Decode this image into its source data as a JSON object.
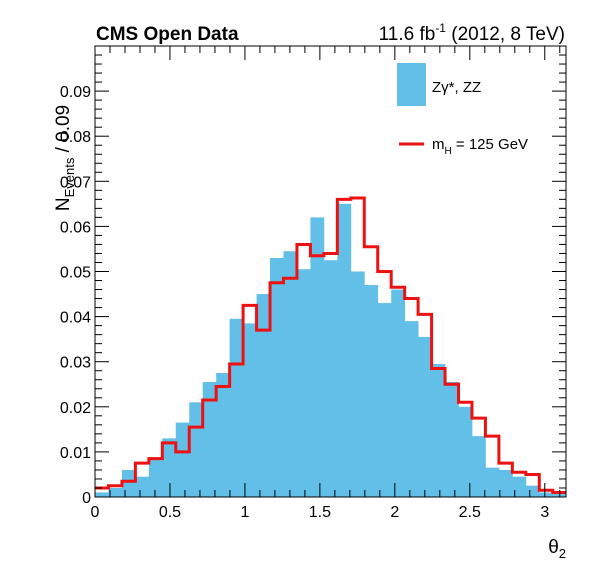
{
  "chart_data": {
    "type": "bar",
    "title": "CMS Open Data",
    "lumi": {
      "base": "11.6 fb",
      "sup": "-1",
      "rest": " (2012, 8 TeV)"
    },
    "xlabel": {
      "base": "θ",
      "sub": "2"
    },
    "ylabel": {
      "base": "N",
      "sub": "Events",
      "rest": " / 0.09"
    },
    "xlim": [
      0,
      3.14159
    ],
    "ylim": [
      0,
      0.1
    ],
    "bin_width": 0.0898,
    "x_ticks": [
      0,
      0.5,
      1,
      1.5,
      2,
      2.5,
      3
    ],
    "x_tick_labels": [
      "0",
      "0.5",
      "1",
      "1.5",
      "2",
      "2.5",
      "3"
    ],
    "y_ticks": [
      0,
      0.01,
      0.02,
      0.03,
      0.04,
      0.05,
      0.06,
      0.07,
      0.08,
      0.09
    ],
    "y_tick_labels": [
      "0",
      "0.01",
      "0.02",
      "0.03",
      "0.04",
      "0.05",
      "0.06",
      "0.07",
      "0.08",
      "0.09"
    ],
    "grid": false,
    "legend_position": "top-right",
    "series": [
      {
        "name": "Zγ*, ZZ",
        "style": "filled-bars",
        "color": "#62bfe8",
        "values": [
          0.001,
          0.002,
          0.006,
          0.0045,
          0.0085,
          0.013,
          0.0165,
          0.021,
          0.0255,
          0.0275,
          0.0395,
          0.0385,
          0.045,
          0.053,
          0.0545,
          0.0505,
          0.062,
          0.0525,
          0.065,
          0.05,
          0.047,
          0.043,
          0.046,
          0.039,
          0.0355,
          0.0295,
          0.0255,
          0.02,
          0.0135,
          0.0065,
          0.006,
          0.0045,
          0.0025,
          0.001,
          0.001
        ]
      },
      {
        "name": "m_H = 125 GeV",
        "legend_label": {
          "base": "m",
          "sub": "H",
          "rest": " = 125 GeV"
        },
        "style": "step-line",
        "color": "#ee1111",
        "values": [
          0.002,
          0.0025,
          0.0035,
          0.0075,
          0.0085,
          0.012,
          0.01,
          0.0155,
          0.0215,
          0.0245,
          0.0295,
          0.0425,
          0.037,
          0.0475,
          0.0485,
          0.056,
          0.0535,
          0.054,
          0.066,
          0.0663,
          0.0555,
          0.05,
          0.0465,
          0.044,
          0.0405,
          0.0285,
          0.025,
          0.021,
          0.0175,
          0.0135,
          0.0075,
          0.0055,
          0.005,
          0.0015,
          0.001
        ]
      }
    ]
  }
}
